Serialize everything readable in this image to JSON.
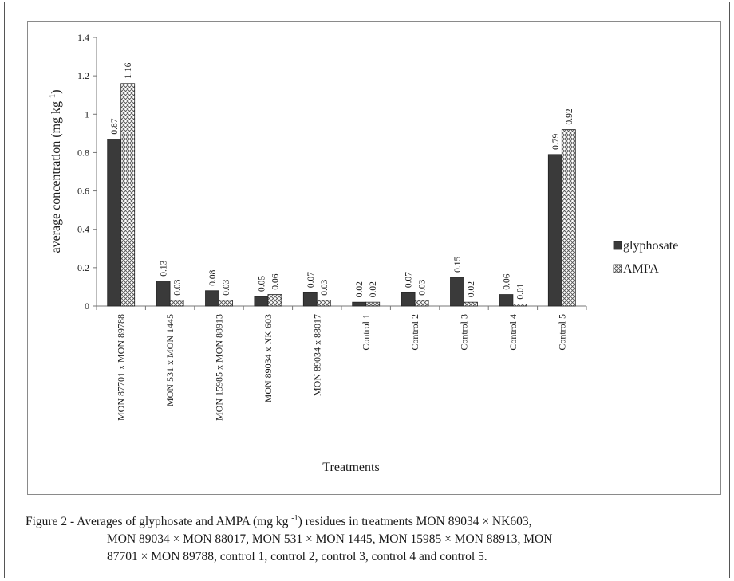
{
  "chart_data": {
    "type": "bar",
    "title": "",
    "xlabel": "Treatments",
    "ylabel_main": "average concentration (mg kg",
    "ylabel_sup": "-1",
    "ylabel_tail": ")",
    "ylim": [
      0,
      1.4
    ],
    "yticks": [
      "0",
      "0.2",
      "0.4",
      "0.6",
      "0.8",
      "1",
      "1.2",
      "1.4"
    ],
    "categories": [
      "MON 87701 x MON 89788",
      "MON 531 x MON 1445",
      "MON 15985 x MON 88913",
      "MON 89034 x NK 603",
      "MON 89034 x 88017",
      "Control 1",
      "Control 2",
      "Control 3",
      "Control 4",
      "Control 5"
    ],
    "series": [
      {
        "name": "glyphosate",
        "values": [
          0.87,
          0.13,
          0.08,
          0.05,
          0.07,
          0.02,
          0.07,
          0.15,
          0.06,
          0.79
        ],
        "labels": [
          "0.87",
          "0.13",
          "0.08",
          "0.05",
          "0.07",
          "0.02",
          "0.07",
          "0.15",
          "0.06",
          "0.79"
        ]
      },
      {
        "name": "AMPA",
        "values": [
          1.16,
          0.03,
          0.03,
          0.06,
          0.03,
          0.02,
          0.03,
          0.02,
          0.01,
          0.92
        ],
        "labels": [
          "1.16",
          "0.03",
          "0.03",
          "0.06",
          "0.03",
          "0.02",
          "0.03",
          "0.02",
          "0.01",
          "0.92"
        ]
      }
    ],
    "legend_position": "right",
    "grid": false,
    "colors": {
      "glyphosate": "#3a3a3a",
      "AMPA": "#ffffff",
      "pattern": "#555555"
    }
  },
  "caption": {
    "prefix": "Figure 2 - Averages of glyphosate and AMPA (mg kg ",
    "sup": "-1",
    "line1_rest": ") residues in treatments MON 89034 × NK603,",
    "line2": "MON 89034 × MON 88017, MON 531 × MON 1445, MON 15985 × MON 88913, MON",
    "line3": "87701 × MON 89788, control 1, control 2, control 3, control 4 and control 5."
  }
}
